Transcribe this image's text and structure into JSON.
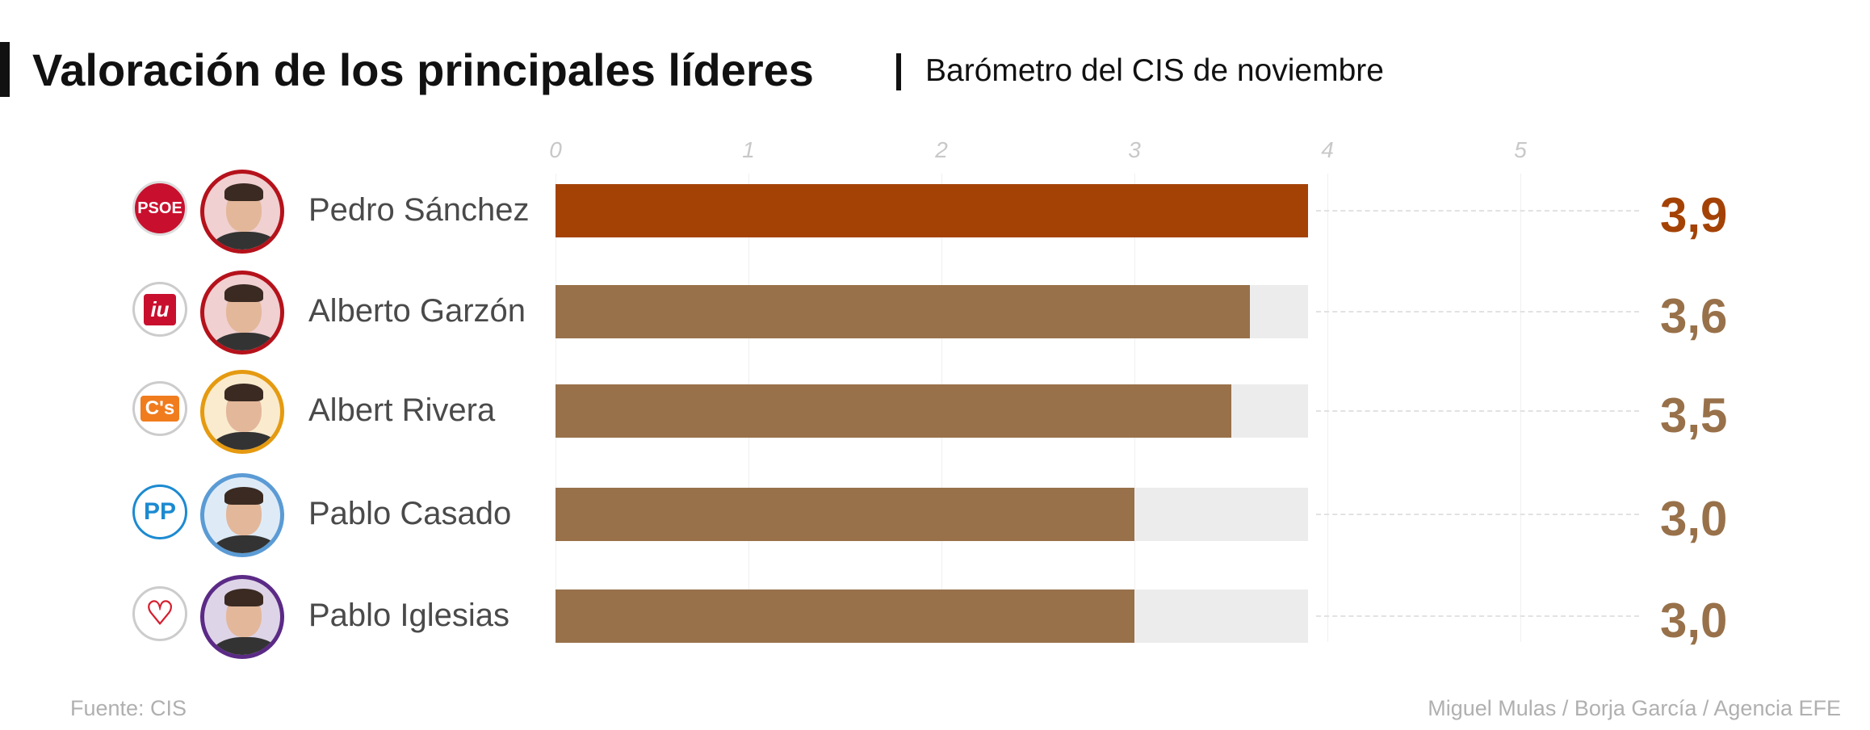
{
  "header": {
    "title": "Valoración de los principales líderes",
    "subtitle": "Barómetro del CIS de noviembre"
  },
  "chart_data": {
    "type": "bar",
    "orientation": "horizontal",
    "title": "Valoración de los principales líderes",
    "subtitle": "Barómetro del CIS de noviembre",
    "xlim": [
      0,
      5
    ],
    "ticks": [
      "0",
      "1",
      "2",
      "3",
      "4",
      "5"
    ],
    "categories": [
      "Pedro Sánchez",
      "Alberto Garzón",
      "Albert Rivera",
      "Pablo Casado",
      "Pablo Iglesias"
    ],
    "values": [
      3.9,
      3.6,
      3.5,
      3.0,
      3.0
    ],
    "value_labels": [
      "3,9",
      "3,6",
      "3,5",
      "3,0",
      "3,0"
    ],
    "parties": [
      "PSOE",
      "IU",
      "C's",
      "PP",
      "Podemos"
    ],
    "party_logo_text": [
      "PSOE",
      "iu",
      "C's",
      "PP",
      ""
    ],
    "bar_colors": [
      "#a44206",
      "#98714a",
      "#98714a",
      "#98714a",
      "#98714a"
    ],
    "photo_ring_colors": [
      "#b5121b",
      "#b5121b",
      "#e59a10",
      "#5b9bd5",
      "#5b2a86"
    ],
    "track_color": "#ececec",
    "legend": "none"
  },
  "footer": {
    "source": "Fuente: CIS",
    "credits": "Miguel Mulas / Borja García / Agencia EFE"
  }
}
